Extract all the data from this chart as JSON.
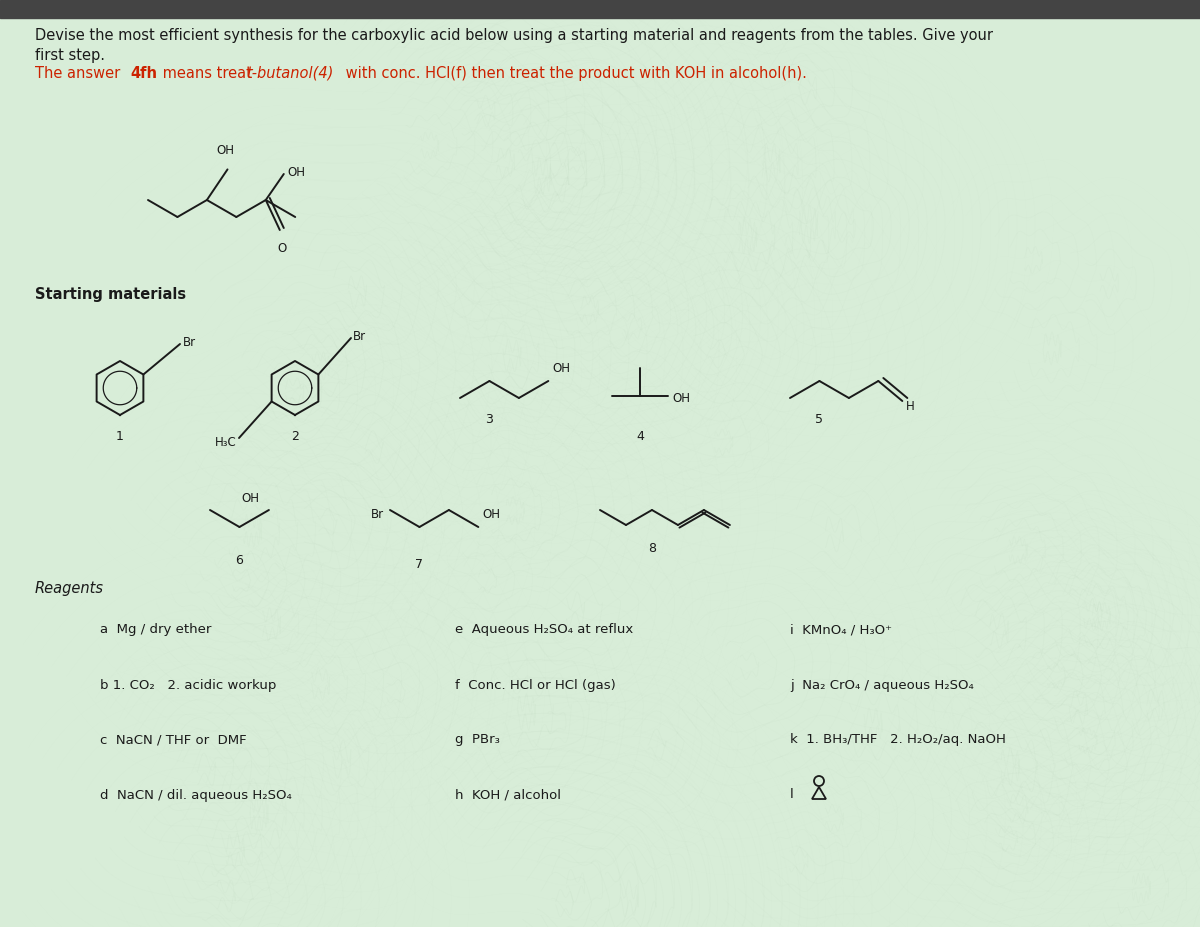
{
  "bg_color": "#d8edd8",
  "header_line1": "Devise the most efficient synthesis for the carboxylic acid below using a starting material and reagents from the tables. Give your",
  "header_line2": "first step.",
  "answer_color": "#cc2200",
  "answer_prefix": "The answer ",
  "answer_bold": "4fh",
  "answer_mid": " means treat ",
  "answer_italic": "t-butanol(4)",
  "answer_end": " with conc. HCl(f) then treat the product with KOH in alcohol(h).",
  "section_starting": "Starting materials",
  "section_reagents": "Reagents",
  "reagents_col1": [
    "a  Mg / dry ether",
    "b 1. CO₂   2. acidic workup",
    "c  NaCN / THF or  DMF",
    "d  NaCN / dil. aqueous H₂SO₄"
  ],
  "reagents_col2": [
    "e  Aqueous H₂SO₄ at reflux",
    "f  Conc. HCl or HCl (gas)",
    "g  PBr₃",
    "h  KOH / alcohol"
  ],
  "reagents_col3": [
    "i  KMnO₄ / H₃O⁺",
    "j  Na₂ CrO₄ / aqueous H₂SO₄",
    "k  1. BH₃/THF   2. H₂O₂/aq. NaOH",
    "l"
  ],
  "wave_colors": [
    "#c8e8c8",
    "#e8f8e8",
    "#b8d8b8",
    "#f0faf0"
  ],
  "nav_bar_color": "#444444",
  "nav_bar_right": "#cc4444"
}
